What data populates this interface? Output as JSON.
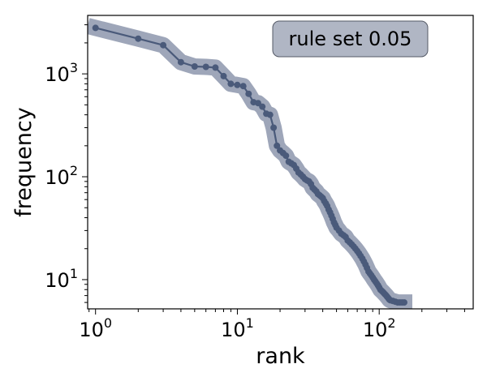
{
  "chart_data": {
    "type": "line",
    "xlabel": "rank",
    "ylabel": "frequency",
    "xscale": "log",
    "yscale": "log",
    "xlim": [
      0.88,
      460
    ],
    "ylim": [
      5.2,
      3700
    ],
    "grid": false,
    "annotation": {
      "text": "rule set 0.05",
      "placement": "top-right",
      "box_color": "#b0b6c4"
    },
    "line_color": "#4a5a7a",
    "band_color": "#9ea6b9",
    "x_ticks": [
      {
        "base": "10",
        "exp": "0",
        "value": 1
      },
      {
        "base": "10",
        "exp": "1",
        "value": 10
      },
      {
        "base": "10",
        "exp": "2",
        "value": 100
      }
    ],
    "y_ticks": [
      {
        "base": "10",
        "exp": "1",
        "value": 10
      },
      {
        "base": "10",
        "exp": "2",
        "value": 100
      },
      {
        "base": "10",
        "exp": "3",
        "value": 1000
      }
    ],
    "series": [
      {
        "x": [
          1,
          2,
          3,
          4,
          5,
          6,
          7,
          8,
          9,
          10,
          11,
          12,
          13,
          14,
          15,
          16,
          17,
          18,
          19,
          20,
          21,
          22,
          23,
          24,
          25,
          26,
          27,
          28,
          29,
          30,
          31,
          32,
          33,
          34,
          35,
          36,
          37,
          38,
          39,
          40,
          41,
          42,
          43,
          44,
          45,
          46,
          47,
          48,
          49,
          50,
          52,
          54,
          56,
          58,
          60,
          62,
          64,
          66,
          68,
          70,
          72,
          74,
          76,
          78,
          80,
          82,
          84,
          86,
          88,
          90,
          92,
          94,
          96,
          98,
          100,
          102,
          104,
          106,
          108,
          110,
          112,
          114,
          116,
          118,
          120,
          125,
          130,
          135,
          140,
          145,
          150
        ],
        "y": [
          2800,
          2200,
          1900,
          1300,
          1180,
          1170,
          1150,
          950,
          800,
          780,
          760,
          640,
          530,
          520,
          480,
          410,
          400,
          300,
          200,
          180,
          170,
          160,
          140,
          135,
          130,
          120,
          110,
          105,
          100,
          95,
          92,
          90,
          85,
          78,
          75,
          72,
          68,
          66,
          64,
          62,
          58,
          55,
          52,
          48,
          45,
          42,
          39,
          36,
          34,
          32,
          30,
          28,
          27,
          26,
          24,
          23,
          22,
          21,
          20,
          19,
          18,
          17,
          16,
          15,
          14,
          13,
          12,
          11.5,
          11,
          10.5,
          10,
          9.6,
          9.2,
          8.8,
          8.4,
          8.0,
          7.8,
          7.6,
          7.4,
          7.2,
          7.0,
          6.8,
          6.6,
          6.4,
          6.3,
          6.2,
          6.1,
          6.0,
          6.0,
          6.0,
          6.0
        ]
      }
    ]
  }
}
